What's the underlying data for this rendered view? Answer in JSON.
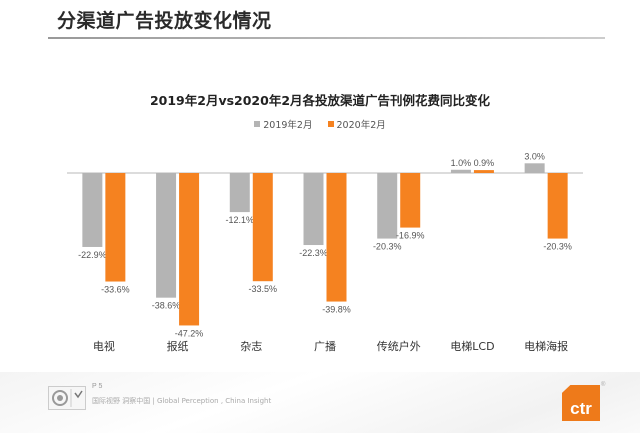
{
  "page": {
    "title": "分渠道广告投放变化情况"
  },
  "footer": {
    "page_number": "P 5",
    "tagline": "国际视野  洞察中国 |  Global Perception  ,  China Insight",
    "logo_text": "ctr",
    "logo_mark": "®"
  },
  "colors": {
    "series_2019": "#b4b4b4",
    "series_2020": "#f58220",
    "brand": "#ee7a1a"
  },
  "chart_data": {
    "type": "bar",
    "title": "2019年2月vs2020年2月各投放渠道广告刊例花费同比变化",
    "xlabel": "",
    "ylabel": "",
    "legend_position": "top-center",
    "grid": false,
    "categories": [
      "电视",
      "报纸",
      "杂志",
      "广播",
      "传统户外",
      "电梯LCD",
      "电梯海报"
    ],
    "series": [
      {
        "name": "2019年2月",
        "values": [
          -22.9,
          -38.6,
          -12.1,
          -22.3,
          -20.3,
          1.0,
          3.0
        ],
        "labels": [
          "-22.9%",
          "-38.6%",
          "-12.1%",
          "-22.3%",
          "-20.3%",
          "1.0%",
          "3.0%"
        ]
      },
      {
        "name": "2020年2月",
        "values": [
          -33.6,
          -47.2,
          -33.5,
          -39.8,
          -16.9,
          0.9,
          -20.3
        ],
        "labels": [
          "-33.6%",
          "-47.2%",
          "-33.5%",
          "-39.8%",
          "-16.9%",
          "0.9%",
          "-20.3%"
        ]
      }
    ],
    "ylim": [
      -50,
      5
    ]
  }
}
